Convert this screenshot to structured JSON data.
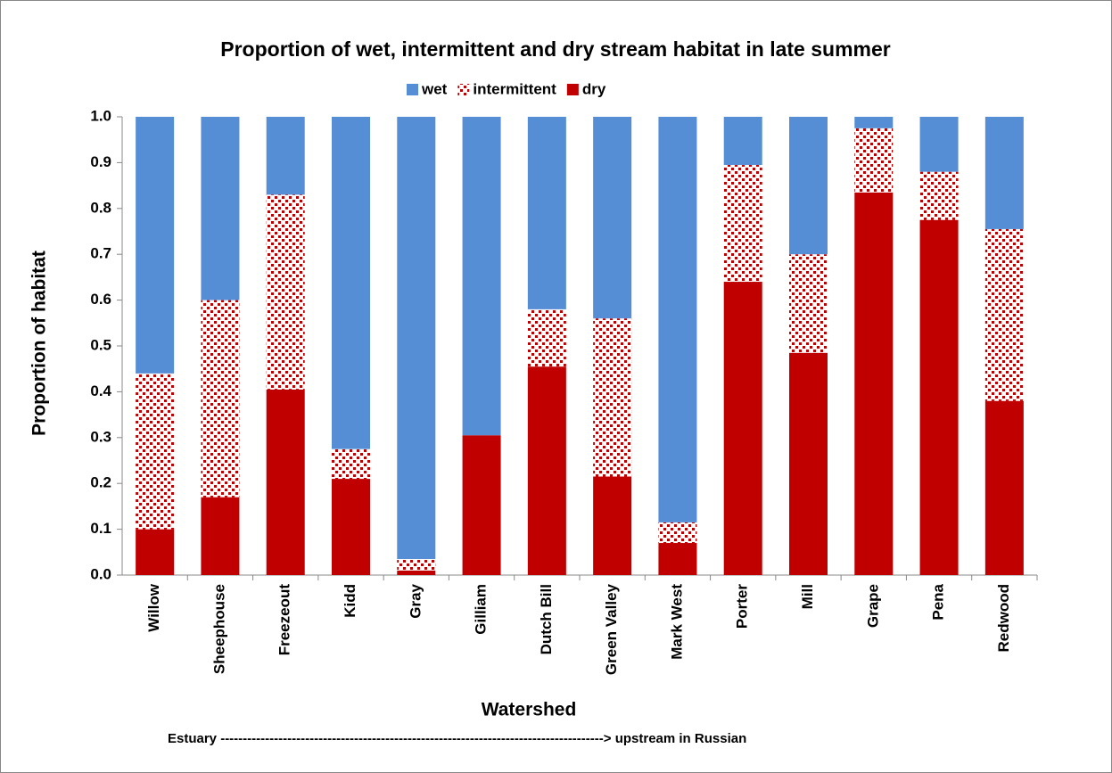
{
  "chart_data": {
    "type": "stacked_bar",
    "title": "Proportion  of wet, intermittent and dry stream habitat in late summer",
    "x_label": "Watershed",
    "y_label": "Proportion of habitat",
    "annotation": "Estuary --------------------------------------------------------------------------------------> upstream in Russian",
    "categories": [
      "Willow",
      "Sheephouse",
      "Freezeout",
      "Kidd",
      "Gray",
      "Gilliam",
      "Dutch Bill",
      "Green Valley",
      "Mark West",
      "Porter",
      "Mill",
      "Grape",
      "Pena",
      "Redwood"
    ],
    "series": [
      {
        "name": "dry",
        "color": "#c00000",
        "values": [
          0.1,
          0.17,
          0.405,
          0.21,
          0.01,
          0.305,
          0.455,
          0.215,
          0.07,
          0.64,
          0.485,
          0.835,
          0.775,
          0.38
        ]
      },
      {
        "name": "intermittent",
        "color": "#c00000",
        "pattern": "dots",
        "values": [
          0.34,
          0.43,
          0.425,
          0.065,
          0.025,
          0,
          0.125,
          0.345,
          0.045,
          0.255,
          0.215,
          0.14,
          0.105,
          0.375
        ]
      },
      {
        "name": "wet",
        "color": "#558ed5",
        "values": [
          0.56,
          0.4,
          0.17,
          0.725,
          0.965,
          0.695,
          0.42,
          0.44,
          0.885,
          0.105,
          0.3,
          0.025,
          0.12,
          0.245
        ]
      }
    ],
    "legend_order": [
      "wet",
      "intermittent",
      "dry"
    ],
    "ylim": [
      0,
      1
    ],
    "yticks": [
      {
        "value": 0,
        "label": "0.0"
      },
      0.1,
      0.2,
      0.3,
      0.4,
      0.5,
      0.6,
      0.7,
      0.8,
      0.9,
      {
        "value": 1,
        "label": "1.0"
      }
    ],
    "grid": false
  }
}
